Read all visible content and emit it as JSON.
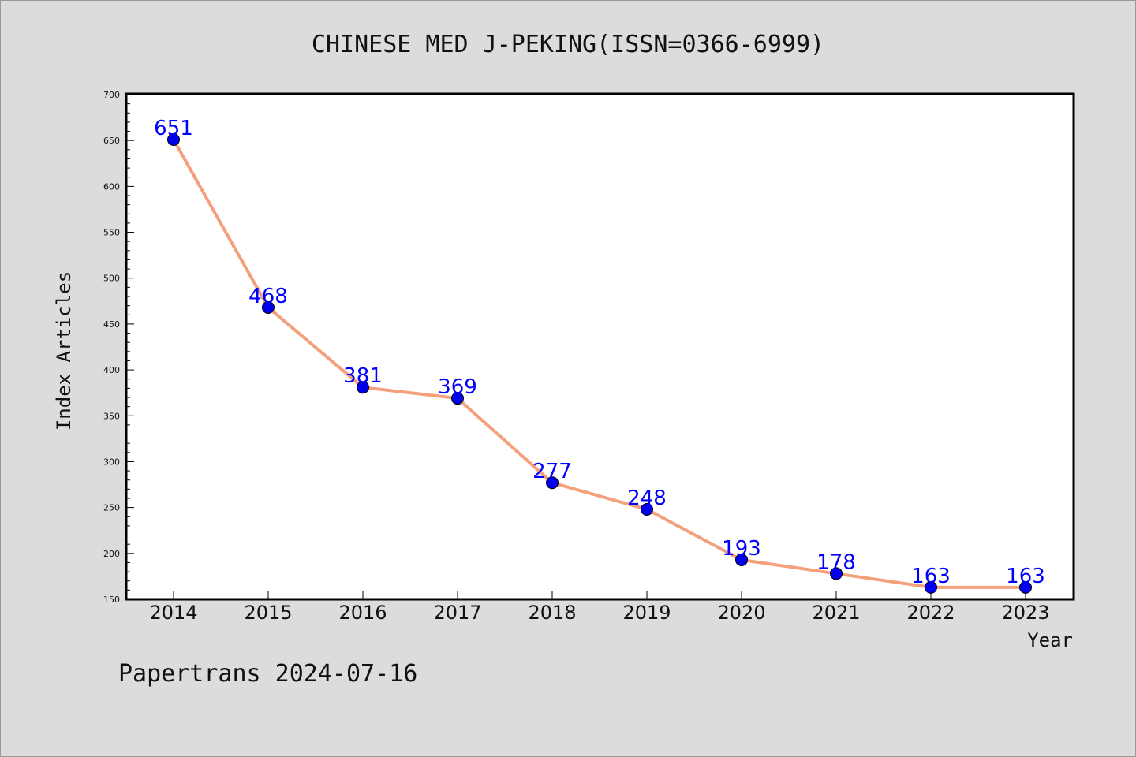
{
  "chart_data": {
    "type": "line",
    "title": "CHINESE MED J-PEKING(ISSN=0366-6999)",
    "xlabel": "Year",
    "ylabel": "Index Articles",
    "categories": [
      "2014",
      "2015",
      "2016",
      "2017",
      "2018",
      "2019",
      "2020",
      "2021",
      "2022",
      "2023"
    ],
    "series": [
      {
        "values": [
          651,
          468,
          381,
          369,
          277,
          248,
          193,
          178,
          163,
          163
        ]
      }
    ],
    "ylim": [
      150,
      700
    ],
    "yticks": [
      150,
      200,
      250,
      300,
      350,
      400,
      450,
      500,
      550,
      600,
      650,
      700
    ],
    "grid": false,
    "data_labels": true,
    "colors": {
      "line": "#f4a07c",
      "marker": "#0000ee",
      "label": "#0000ff"
    }
  },
  "footer": "Papertrans 2024-07-16"
}
